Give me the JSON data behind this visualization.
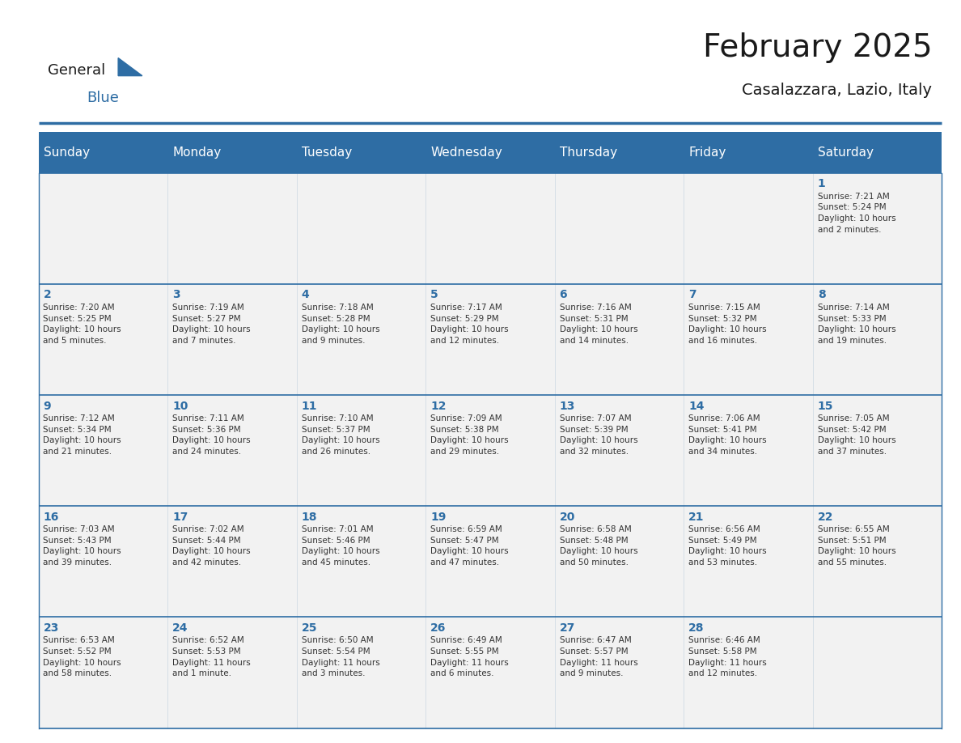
{
  "title": "February 2025",
  "subtitle": "Casalazzara, Lazio, Italy",
  "header_bg_color": "#2E6DA4",
  "header_text_color": "#FFFFFF",
  "cell_bg_color": "#F2F2F2",
  "cell_border_color": "#2E6DA4",
  "day_number_color": "#2E6DA4",
  "detail_text_color": "#333333",
  "background_color": "#FFFFFF",
  "days_of_week": [
    "Sunday",
    "Monday",
    "Tuesday",
    "Wednesday",
    "Thursday",
    "Friday",
    "Saturday"
  ],
  "weeks": [
    [
      {
        "day": null,
        "info": null
      },
      {
        "day": null,
        "info": null
      },
      {
        "day": null,
        "info": null
      },
      {
        "day": null,
        "info": null
      },
      {
        "day": null,
        "info": null
      },
      {
        "day": null,
        "info": null
      },
      {
        "day": 1,
        "info": "Sunrise: 7:21 AM\nSunset: 5:24 PM\nDaylight: 10 hours\nand 2 minutes."
      }
    ],
    [
      {
        "day": 2,
        "info": "Sunrise: 7:20 AM\nSunset: 5:25 PM\nDaylight: 10 hours\nand 5 minutes."
      },
      {
        "day": 3,
        "info": "Sunrise: 7:19 AM\nSunset: 5:27 PM\nDaylight: 10 hours\nand 7 minutes."
      },
      {
        "day": 4,
        "info": "Sunrise: 7:18 AM\nSunset: 5:28 PM\nDaylight: 10 hours\nand 9 minutes."
      },
      {
        "day": 5,
        "info": "Sunrise: 7:17 AM\nSunset: 5:29 PM\nDaylight: 10 hours\nand 12 minutes."
      },
      {
        "day": 6,
        "info": "Sunrise: 7:16 AM\nSunset: 5:31 PM\nDaylight: 10 hours\nand 14 minutes."
      },
      {
        "day": 7,
        "info": "Sunrise: 7:15 AM\nSunset: 5:32 PM\nDaylight: 10 hours\nand 16 minutes."
      },
      {
        "day": 8,
        "info": "Sunrise: 7:14 AM\nSunset: 5:33 PM\nDaylight: 10 hours\nand 19 minutes."
      }
    ],
    [
      {
        "day": 9,
        "info": "Sunrise: 7:12 AM\nSunset: 5:34 PM\nDaylight: 10 hours\nand 21 minutes."
      },
      {
        "day": 10,
        "info": "Sunrise: 7:11 AM\nSunset: 5:36 PM\nDaylight: 10 hours\nand 24 minutes."
      },
      {
        "day": 11,
        "info": "Sunrise: 7:10 AM\nSunset: 5:37 PM\nDaylight: 10 hours\nand 26 minutes."
      },
      {
        "day": 12,
        "info": "Sunrise: 7:09 AM\nSunset: 5:38 PM\nDaylight: 10 hours\nand 29 minutes."
      },
      {
        "day": 13,
        "info": "Sunrise: 7:07 AM\nSunset: 5:39 PM\nDaylight: 10 hours\nand 32 minutes."
      },
      {
        "day": 14,
        "info": "Sunrise: 7:06 AM\nSunset: 5:41 PM\nDaylight: 10 hours\nand 34 minutes."
      },
      {
        "day": 15,
        "info": "Sunrise: 7:05 AM\nSunset: 5:42 PM\nDaylight: 10 hours\nand 37 minutes."
      }
    ],
    [
      {
        "day": 16,
        "info": "Sunrise: 7:03 AM\nSunset: 5:43 PM\nDaylight: 10 hours\nand 39 minutes."
      },
      {
        "day": 17,
        "info": "Sunrise: 7:02 AM\nSunset: 5:44 PM\nDaylight: 10 hours\nand 42 minutes."
      },
      {
        "day": 18,
        "info": "Sunrise: 7:01 AM\nSunset: 5:46 PM\nDaylight: 10 hours\nand 45 minutes."
      },
      {
        "day": 19,
        "info": "Sunrise: 6:59 AM\nSunset: 5:47 PM\nDaylight: 10 hours\nand 47 minutes."
      },
      {
        "day": 20,
        "info": "Sunrise: 6:58 AM\nSunset: 5:48 PM\nDaylight: 10 hours\nand 50 minutes."
      },
      {
        "day": 21,
        "info": "Sunrise: 6:56 AM\nSunset: 5:49 PM\nDaylight: 10 hours\nand 53 minutes."
      },
      {
        "day": 22,
        "info": "Sunrise: 6:55 AM\nSunset: 5:51 PM\nDaylight: 10 hours\nand 55 minutes."
      }
    ],
    [
      {
        "day": 23,
        "info": "Sunrise: 6:53 AM\nSunset: 5:52 PM\nDaylight: 10 hours\nand 58 minutes."
      },
      {
        "day": 24,
        "info": "Sunrise: 6:52 AM\nSunset: 5:53 PM\nDaylight: 11 hours\nand 1 minute."
      },
      {
        "day": 25,
        "info": "Sunrise: 6:50 AM\nSunset: 5:54 PM\nDaylight: 11 hours\nand 3 minutes."
      },
      {
        "day": 26,
        "info": "Sunrise: 6:49 AM\nSunset: 5:55 PM\nDaylight: 11 hours\nand 6 minutes."
      },
      {
        "day": 27,
        "info": "Sunrise: 6:47 AM\nSunset: 5:57 PM\nDaylight: 11 hours\nand 9 minutes."
      },
      {
        "day": 28,
        "info": "Sunrise: 6:46 AM\nSunset: 5:58 PM\nDaylight: 11 hours\nand 12 minutes."
      },
      {
        "day": null,
        "info": null
      }
    ]
  ],
  "header_fontsize": 11,
  "day_number_fontsize": 10,
  "detail_fontsize": 7.5,
  "title_fontsize": 28,
  "subtitle_fontsize": 14
}
